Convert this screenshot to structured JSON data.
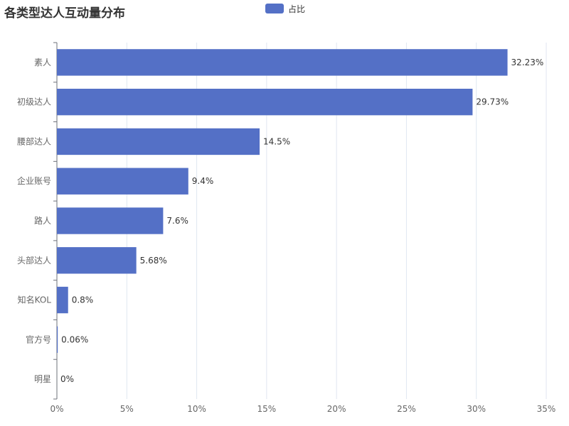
{
  "chart_data": {
    "type": "bar",
    "orientation": "horizontal",
    "title": "各类型达人互动量分布",
    "xlabel": "",
    "ylabel": "",
    "legend_position": "top-center",
    "grid": true,
    "xlim": [
      0,
      35
    ],
    "x_ticks": [
      "0%",
      "5%",
      "10%",
      "15%",
      "20%",
      "25%",
      "30%",
      "35%"
    ],
    "categories": [
      "素人",
      "初级达人",
      "腰部达人",
      "企业账号",
      "路人",
      "头部达人",
      "知名KOL",
      "官方号",
      "明星"
    ],
    "series": [
      {
        "name": "占比",
        "values": [
          32.23,
          29.73,
          14.5,
          9.4,
          7.6,
          5.68,
          0.8,
          0.06,
          0
        ],
        "labels": [
          "32.23%",
          "29.73%",
          "14.5%",
          "9.4%",
          "7.6%",
          "5.68%",
          "0.8%",
          "0.06%",
          "0%"
        ]
      }
    ],
    "colors": {
      "bar": "#5470c6",
      "grid": "#e0e6f1",
      "axis": "#6e7079"
    }
  }
}
